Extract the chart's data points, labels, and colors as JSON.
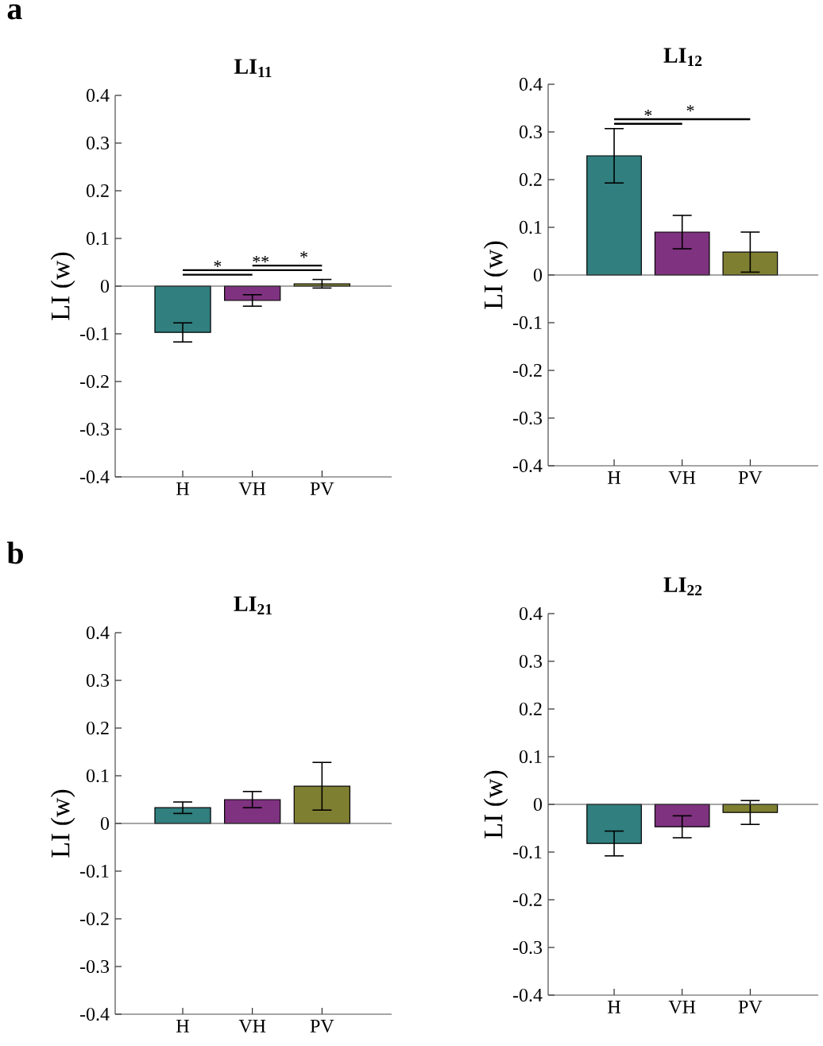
{
  "chart_data": [
    {
      "type": "bar",
      "title": "LI$_{11}$",
      "ylabel": "LI (w)",
      "categories": [
        "H",
        "VH",
        "PV"
      ],
      "colors": [
        "#317f7f",
        "#7f327f",
        "#7f7f32"
      ],
      "values": [
        -0.097,
        -0.03,
        0.005
      ],
      "errors": [
        0.02,
        0.012,
        0.009
      ],
      "ylim": [
        -0.4,
        0.4
      ],
      "yticks": [
        -0.4,
        -0.3,
        -0.2,
        -0.1,
        0,
        0.1,
        0.2,
        0.3,
        0.4
      ],
      "subtitle": "a",
      "annotations": [
        "*",
        "**",
        "*"
      ]
    },
    {
      "type": "bar",
      "title": "LI$_{12}$",
      "ylabel": "LI (w)",
      "categories": [
        "H",
        "VH",
        "PV"
      ],
      "colors": [
        "#317f7f",
        "#7f327f",
        "#7f7f32"
      ],
      "values": [
        0.25,
        0.09,
        0.048
      ],
      "errors": [
        0.057,
        0.035,
        0.042
      ],
      "ylim": [
        -0.4,
        0.4
      ],
      "yticks": [
        -0.4,
        -0.3,
        -0.2,
        -0.1,
        0,
        0.1,
        0.2,
        0.3,
        0.4
      ],
      "annotations": [
        "*",
        "*"
      ]
    },
    {
      "type": "bar",
      "title": "LI$_{21}$",
      "ylabel": "LI (w)",
      "categories": [
        "H",
        "VH",
        "PV"
      ],
      "colors": [
        "#317f7f",
        "#7f327f",
        "#7f7f32"
      ],
      "values": [
        0.033,
        0.05,
        0.078
      ],
      "errors": [
        0.012,
        0.017,
        0.05
      ],
      "ylim": [
        -0.4,
        0.4
      ],
      "yticks": [
        -0.4,
        -0.3,
        -0.2,
        -0.1,
        0,
        0.1,
        0.2,
        0.3,
        0.4
      ],
      "subtitle": "b"
    },
    {
      "type": "bar",
      "title": "LI$_{22}$",
      "ylabel": "LI (w)",
      "categories": [
        "H",
        "VH",
        "PV"
      ],
      "colors": [
        "#317f7f",
        "#7f327f",
        "#7f7f32"
      ],
      "values": [
        -0.082,
        -0.047,
        -0.017
      ],
      "errors": [
        0.026,
        0.023,
        0.025
      ],
      "ylim": [
        -0.4,
        0.4
      ],
      "yticks": [
        -0.4,
        -0.3,
        -0.2,
        -0.1,
        0,
        0.1,
        0.2,
        0.3,
        0.4
      ]
    }
  ]
}
